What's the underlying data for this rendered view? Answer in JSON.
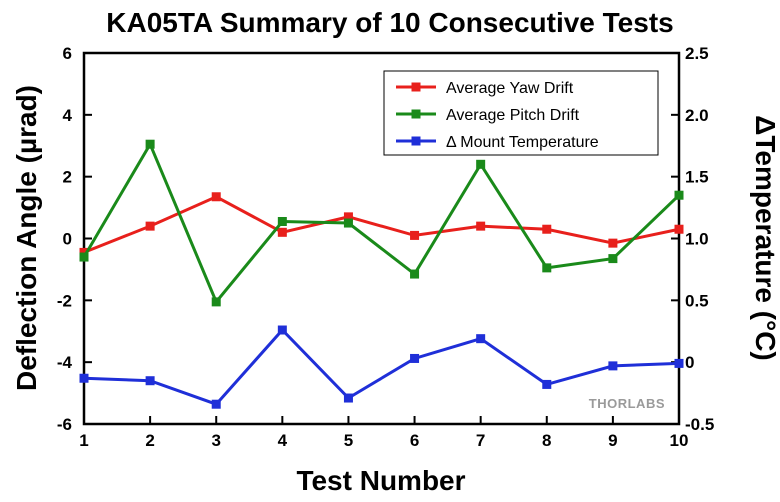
{
  "chart_data": {
    "type": "line",
    "title": "KA05TA Summary of 10 Consecutive Tests",
    "xlabel": "Test Number",
    "ylabel": "Deflection Angle (µrad)",
    "y2label": "ΔTemperature (°C)",
    "x": [
      1,
      2,
      3,
      4,
      5,
      6,
      7,
      8,
      9,
      10
    ],
    "xlim": [
      1,
      10
    ],
    "ylim": [
      -6,
      6
    ],
    "y2lim": [
      -0.5,
      2.5
    ],
    "xticks": [
      "1",
      "2",
      "3",
      "4",
      "5",
      "6",
      "7",
      "8",
      "9",
      "10"
    ],
    "yticks": [
      "-6",
      "-4",
      "-2",
      "0",
      "2",
      "4",
      "6"
    ],
    "y2ticks": [
      "-0.5",
      "0",
      "0.5",
      "1.0",
      "1.5",
      "2.0",
      "2.5"
    ],
    "grid": false,
    "legend_position": "top-right",
    "series": [
      {
        "name": "Average Yaw Drift",
        "axis": "left",
        "color": "#e8201c",
        "values": [
          -0.45,
          0.4,
          1.35,
          0.2,
          0.7,
          0.1,
          0.4,
          0.3,
          -0.15,
          0.3
        ]
      },
      {
        "name": "Average Pitch Drift",
        "axis": "left",
        "color": "#1a8a1a",
        "values": [
          -0.6,
          3.05,
          -2.05,
          0.55,
          0.5,
          -1.15,
          2.4,
          -0.95,
          -0.65,
          1.4
        ]
      },
      {
        "name": "Δ Mount Temperature",
        "axis": "right",
        "color": "#1f2fd8",
        "values": [
          -0.13,
          -0.15,
          -0.34,
          0.26,
          -0.29,
          0.03,
          0.19,
          -0.18,
          -0.03,
          -0.01
        ]
      }
    ]
  },
  "watermark": "THORLABS"
}
